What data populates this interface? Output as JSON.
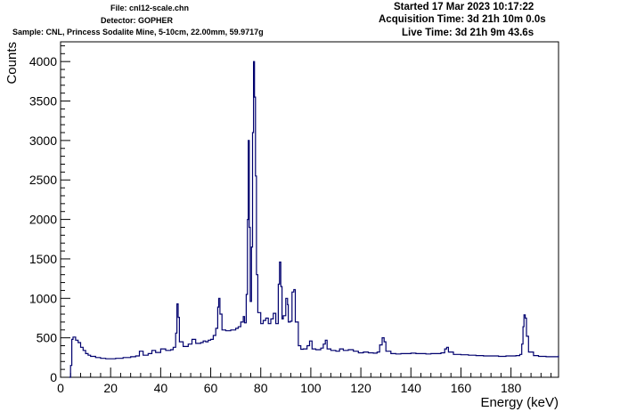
{
  "header": {
    "file": "File: cnl12-scale.chn",
    "detector": "Detector: GOPHER",
    "sample": "Sample: CNL, Princess Sodalite Mine, 5-10cm, 22.00mm, 59.9717g",
    "started": "Started 17 Mar 2023 10:17:22",
    "acquisition_time": "Acquisition Time: 3d 21h 10m 0.0s",
    "live_time": "Live Time: 3d 21h 9m 43.6s"
  },
  "colors": {
    "line": "#00006e",
    "axes": "#000000",
    "background": "#ffffff"
  },
  "chart_data": {
    "type": "line",
    "xlabel": "Energy (keV)",
    "ylabel": "Counts",
    "xlim": [
      0,
      199
    ],
    "ylim": [
      0,
      4250
    ],
    "xticks": [
      0,
      20,
      40,
      60,
      80,
      100,
      120,
      140,
      160,
      180
    ],
    "yticks": [
      0,
      500,
      1000,
      1500,
      2000,
      2500,
      3000,
      3500,
      4000
    ],
    "grid": false,
    "series": [
      {
        "values": [
          [
            3.5,
            0
          ],
          [
            4.0,
            150
          ],
          [
            4.5,
            480
          ],
          [
            5.0,
            510
          ],
          [
            6,
            470
          ],
          [
            7,
            440
          ],
          [
            8,
            380
          ],
          [
            9,
            340
          ],
          [
            10,
            300
          ],
          [
            11,
            280
          ],
          [
            12,
            265
          ],
          [
            14,
            250
          ],
          [
            16,
            240
          ],
          [
            18,
            235
          ],
          [
            20,
            235
          ],
          [
            22,
            240
          ],
          [
            25,
            250
          ],
          [
            28,
            260
          ],
          [
            30,
            270
          ],
          [
            31.5,
            330
          ],
          [
            33,
            280
          ],
          [
            35,
            300
          ],
          [
            36.5,
            340
          ],
          [
            38,
            315
          ],
          [
            40,
            360
          ],
          [
            42,
            340
          ],
          [
            44,
            350
          ],
          [
            45,
            380
          ],
          [
            46,
            560
          ],
          [
            46.5,
            930
          ],
          [
            47,
            760
          ],
          [
            47.5,
            450
          ],
          [
            49,
            390
          ],
          [
            51,
            420
          ],
          [
            52.5,
            480
          ],
          [
            54,
            430
          ],
          [
            56,
            440
          ],
          [
            57,
            460
          ],
          [
            58,
            450
          ],
          [
            59,
            470
          ],
          [
            60,
            480
          ],
          [
            61,
            530
          ],
          [
            62,
            620
          ],
          [
            62.8,
            890
          ],
          [
            63.2,
            1000
          ],
          [
            63.7,
            800
          ],
          [
            64.5,
            600
          ],
          [
            66,
            590
          ],
          [
            68,
            600
          ],
          [
            70,
            620
          ],
          [
            71,
            640
          ],
          [
            72,
            700
          ],
          [
            73,
            770
          ],
          [
            73.5,
            690
          ],
          [
            74.2,
            1050
          ],
          [
            74.7,
            2000
          ],
          [
            75.0,
            3000
          ],
          [
            75.4,
            1900
          ],
          [
            75.8,
            960
          ],
          [
            76.3,
            1650
          ],
          [
            76.7,
            3100
          ],
          [
            77.1,
            4000
          ],
          [
            77.5,
            3550
          ],
          [
            77.9,
            2550
          ],
          [
            78.3,
            1300
          ],
          [
            78.8,
            820
          ],
          [
            80,
            680
          ],
          [
            81,
            720
          ],
          [
            82,
            750
          ],
          [
            83,
            680
          ],
          [
            84,
            740
          ],
          [
            85,
            810
          ],
          [
            86,
            680
          ],
          [
            87,
            1180
          ],
          [
            87.5,
            1460
          ],
          [
            88,
            1150
          ],
          [
            88.5,
            740
          ],
          [
            89,
            780
          ],
          [
            90,
            1000
          ],
          [
            90.7,
            920
          ],
          [
            91,
            700
          ],
          [
            91.8,
            710
          ],
          [
            92.5,
            1080
          ],
          [
            93.2,
            1110
          ],
          [
            93.8,
            700
          ],
          [
            95,
            400
          ],
          [
            96,
            355
          ],
          [
            97,
            360
          ],
          [
            98.5,
            400
          ],
          [
            99.5,
            460
          ],
          [
            100.5,
            360
          ],
          [
            102,
            350
          ],
          [
            104,
            370
          ],
          [
            105,
            420
          ],
          [
            105.8,
            470
          ],
          [
            106.5,
            360
          ],
          [
            108,
            340
          ],
          [
            110,
            330
          ],
          [
            111.5,
            360
          ],
          [
            113,
            340
          ],
          [
            115,
            350
          ],
          [
            117,
            330
          ],
          [
            119,
            310
          ],
          [
            121,
            320
          ],
          [
            123,
            310
          ],
          [
            125,
            305
          ],
          [
            126.5,
            320
          ],
          [
            127.5,
            410
          ],
          [
            128.5,
            500
          ],
          [
            129.3,
            450
          ],
          [
            130,
            330
          ],
          [
            132,
            300
          ],
          [
            134,
            295
          ],
          [
            136,
            300
          ],
          [
            138,
            300
          ],
          [
            140,
            305
          ],
          [
            142,
            300
          ],
          [
            144,
            300
          ],
          [
            146,
            295
          ],
          [
            148,
            300
          ],
          [
            150,
            300
          ],
          [
            152,
            310
          ],
          [
            153.5,
            360
          ],
          [
            154.3,
            380
          ],
          [
            155,
            320
          ],
          [
            157,
            290
          ],
          [
            160,
            285
          ],
          [
            163,
            280
          ],
          [
            166,
            275
          ],
          [
            169,
            270
          ],
          [
            172,
            270
          ],
          [
            175,
            265
          ],
          [
            178,
            270
          ],
          [
            180,
            270
          ],
          [
            182,
            275
          ],
          [
            183.5,
            290
          ],
          [
            184.3,
            420
          ],
          [
            184.8,
            640
          ],
          [
            185.2,
            790
          ],
          [
            185.7,
            750
          ],
          [
            186.2,
            520
          ],
          [
            187,
            320
          ],
          [
            189,
            275
          ],
          [
            191,
            265
          ],
          [
            194,
            260
          ],
          [
            197,
            260
          ],
          [
            199,
            275
          ]
        ]
      }
    ]
  }
}
